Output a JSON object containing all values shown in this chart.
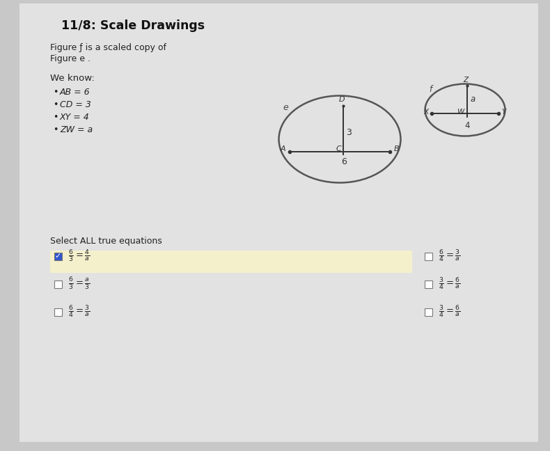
{
  "title": "11/8: Scale Drawings",
  "subtitle_line1": "Figure ƒ is a scaled copy of",
  "subtitle_line2": "Figure e .",
  "we_know": "We know:",
  "bullets": [
    "AB = 6",
    "CD = 3",
    "XY = 4",
    "ZW = a"
  ],
  "select_text": "Select ALL true equations",
  "eq_left": [
    [
      "6",
      "3",
      "4",
      "a"
    ],
    [
      "6",
      "3",
      "a",
      "3"
    ],
    [
      "6",
      "4",
      "3",
      "a"
    ]
  ],
  "eq_right": [
    [
      "6",
      "4",
      "3",
      "a"
    ],
    [
      "3",
      "4",
      "6",
      "a"
    ],
    [
      "3",
      "4",
      "6",
      "a"
    ]
  ],
  "checked_left": [
    true,
    false,
    false
  ],
  "checked_right": [
    false,
    false,
    false
  ],
  "bg_color": "#c8c8c8",
  "paper_color": "#e2e2e2",
  "highlight_color": "#f5f0cc",
  "title_color": "#111111",
  "text_color": "#222222",
  "check_color": "#3355cc",
  "fig_width": 7.9,
  "fig_height": 6.48,
  "dpi": 100
}
